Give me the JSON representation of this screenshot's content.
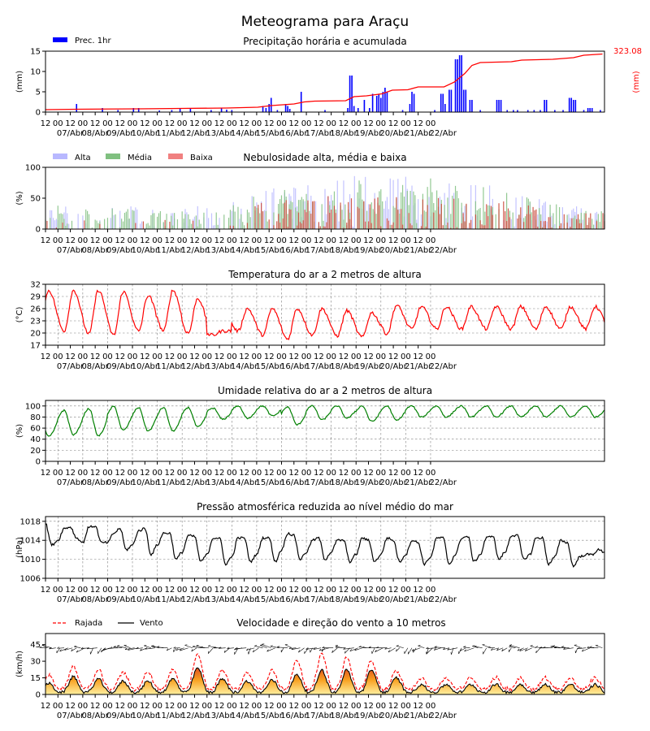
{
  "page": {
    "title": "Meteograma para Araçu"
  },
  "x_axis": {
    "hour_ticks": [
      "12",
      "00",
      "12",
      "00",
      "12",
      "00",
      "12",
      "00",
      "12",
      "00",
      "12",
      "00",
      "12",
      "00",
      "12",
      "00",
      "12",
      "00",
      "12",
      "00",
      "12",
      "00",
      "12",
      "00",
      "12",
      "00",
      "12",
      "00",
      "12",
      "00",
      "12",
      "00"
    ],
    "day_labels": [
      "07/Abr",
      "08/Abr",
      "09/Abr",
      "10/Abr",
      "11/Abr",
      "12/Abr",
      "13/Abr",
      "14/Abr",
      "15/Abr",
      "16/Abr",
      "17/Abr",
      "18/Abr",
      "19/Abr",
      "20/Abr",
      "21/Abr",
      "22/Abr"
    ],
    "range_hours": [
      0,
      384
    ]
  },
  "chart_data": [
    {
      "id": "precip",
      "type": "bar",
      "title": "Precipitação horária e acumulada",
      "ylabel": "(mm)",
      "ylabel_right": "(mm)",
      "ylim": [
        0,
        15
      ],
      "yticks": [
        "0",
        "5",
        "10",
        "15"
      ],
      "legend": [
        "Prec. 1hr"
      ],
      "total_label": "323.08",
      "colors": {
        "bars": "#0000ff",
        "accum": "#ff0000"
      },
      "bars": [
        [
          30,
          2
        ],
        [
          55,
          1
        ],
        [
          70,
          0.5
        ],
        [
          85,
          1
        ],
        [
          90,
          1
        ],
        [
          110,
          0.4
        ],
        [
          122,
          0.5
        ],
        [
          130,
          1
        ],
        [
          140,
          0.8
        ],
        [
          160,
          0.5
        ],
        [
          170,
          1
        ],
        [
          175,
          0.6
        ],
        [
          180,
          0.5
        ],
        [
          210,
          1.5
        ],
        [
          213,
          1
        ],
        [
          216,
          2
        ],
        [
          218,
          3.5
        ],
        [
          224,
          0.5
        ],
        [
          232,
          2
        ],
        [
          234,
          1.5
        ],
        [
          236,
          0.8
        ],
        [
          247,
          5
        ],
        [
          270,
          0.5
        ],
        [
          292,
          1
        ],
        [
          294,
          9
        ],
        [
          296,
          9
        ],
        [
          298,
          1.5
        ],
        [
          302,
          1
        ],
        [
          308,
          3
        ],
        [
          313,
          1
        ],
        [
          316,
          4.5
        ],
        [
          320,
          4
        ],
        [
          322,
          4.5
        ],
        [
          324,
          3.5
        ],
        [
          326,
          5
        ],
        [
          328,
          6
        ],
        [
          330,
          5
        ],
        [
          345,
          0.5
        ],
        [
          352,
          2
        ],
        [
          354,
          5
        ],
        [
          356,
          4.5
        ],
        [
          376,
          0.5
        ],
        [
          382,
          4.5
        ],
        [
          384,
          4.5
        ],
        [
          386,
          2
        ],
        [
          390,
          5.5
        ],
        [
          392,
          5.5
        ],
        [
          396,
          13
        ],
        [
          398,
          13
        ],
        [
          400,
          14
        ],
        [
          402,
          14
        ],
        [
          404,
          5.5
        ],
        [
          406,
          5.5
        ],
        [
          410,
          3
        ],
        [
          412,
          3
        ],
        [
          420,
          0.5
        ],
        [
          436,
          3
        ],
        [
          438,
          3
        ],
        [
          440,
          3
        ],
        [
          446,
          0.5
        ],
        [
          452,
          0.5
        ],
        [
          456,
          0.5
        ],
        [
          466,
          0.5
        ],
        [
          472,
          0.5
        ],
        [
          478,
          0.5
        ],
        [
          482,
          3
        ],
        [
          484,
          3
        ],
        [
          492,
          0.5
        ],
        [
          500,
          0.5
        ],
        [
          506,
          3.5
        ],
        [
          508,
          3.5
        ],
        [
          510,
          3
        ],
        [
          512,
          3
        ],
        [
          520,
          0.5
        ],
        [
          524,
          1
        ],
        [
          526,
          1
        ],
        [
          528,
          1
        ],
        [
          536,
          0.5
        ]
      ],
      "accum": [
        [
          0,
          0.6
        ],
        [
          30,
          0.7
        ],
        [
          90,
          0.8
        ],
        [
          130,
          0.9
        ],
        [
          175,
          1.0
        ],
        [
          205,
          1.2
        ],
        [
          218,
          1.6
        ],
        [
          240,
          2.0
        ],
        [
          250,
          2.5
        ],
        [
          260,
          2.7
        ],
        [
          290,
          2.8
        ],
        [
          298,
          3.8
        ],
        [
          310,
          4.0
        ],
        [
          325,
          4.5
        ],
        [
          335,
          5.4
        ],
        [
          350,
          5.5
        ],
        [
          360,
          6.2
        ],
        [
          385,
          6.2
        ],
        [
          395,
          7.4
        ],
        [
          405,
          9.5
        ],
        [
          412,
          11.5
        ],
        [
          420,
          12.2
        ],
        [
          450,
          12.4
        ],
        [
          460,
          12.8
        ],
        [
          490,
          13.0
        ],
        [
          510,
          13.4
        ],
        [
          520,
          14.0
        ],
        [
          538,
          14.3
        ]
      ]
    },
    {
      "id": "clouds",
      "type": "bar",
      "title": "Nebulosidade alta, média e baixa",
      "ylabel": "(%)",
      "ylim": [
        0,
        100
      ],
      "yticks": [
        "0",
        "50",
        "100"
      ],
      "series": [
        {
          "name": "Alta",
          "color": "#b8b8ff"
        },
        {
          "name": "Média",
          "color": "#80c080"
        },
        {
          "name": "Baixa",
          "color": "#f08080"
        }
      ]
    },
    {
      "id": "temp",
      "type": "line",
      "title": "Temperatura do ar a 2 metros de altura",
      "ylabel": "(°C)",
      "ylim": [
        17,
        32
      ],
      "yticks": [
        "17",
        "20",
        "23",
        "26",
        "29",
        "32"
      ],
      "color": "#ff0000",
      "daily_max": [
        30.5,
        30.5,
        30.5,
        30.2,
        29.2,
        30.5,
        28.5,
        20.5,
        26,
        26,
        26,
        26,
        25.5,
        25,
        26.8,
        26.5
      ],
      "daily_min": [
        19.8,
        20.5,
        19.8,
        19.5,
        20.5,
        20.5,
        20,
        19.5,
        20.5,
        19.5,
        18.5,
        19.5,
        19.3,
        19,
        19.8,
        21
      ]
    },
    {
      "id": "humidity",
      "type": "line",
      "title": "Umidade relativa do ar a 2 metros de altura",
      "ylabel": "(%)",
      "ylim": [
        0,
        110
      ],
      "yticks": [
        "0",
        "20",
        "40",
        "60",
        "80",
        "100"
      ],
      "color": "#008000",
      "daily_max": [
        88,
        92,
        95,
        99,
        97,
        97,
        97,
        96,
        100,
        100,
        98,
        100,
        100,
        100,
        100,
        100
      ],
      "daily_min": [
        45,
        48,
        46,
        56,
        55,
        55,
        62,
        76,
        78,
        82,
        66,
        75,
        78,
        72,
        74,
        80
      ]
    },
    {
      "id": "pressure",
      "type": "line",
      "title": "Pressão atmosférica reduzida ao nível médio do mar",
      "ylabel": "(hPa)",
      "ylim": [
        1006,
        1019
      ],
      "yticks": [
        "1006",
        "1010",
        "1014",
        "1018"
      ],
      "color": "#000000",
      "series_points": [
        [
          0,
          1017.5
        ],
        [
          6,
          1013
        ],
        [
          12,
          1014
        ],
        [
          18,
          1016.5
        ],
        [
          24,
          1016.8
        ],
        [
          30,
          1014.5
        ],
        [
          36,
          1013.5
        ],
        [
          42,
          1016.8
        ],
        [
          48,
          1017
        ],
        [
          54,
          1013.5
        ],
        [
          60,
          1013.5
        ],
        [
          66,
          1015.5
        ],
        [
          72,
          1016.5
        ],
        [
          78,
          1012
        ],
        [
          84,
          1013
        ],
        [
          90,
          1016
        ],
        [
          96,
          1016.5
        ],
        [
          102,
          1011
        ],
        [
          108,
          1013
        ],
        [
          114,
          1015.5
        ],
        [
          120,
          1015.5
        ],
        [
          126,
          1010
        ],
        [
          132,
          1011.5
        ],
        [
          138,
          1015
        ],
        [
          144,
          1014.8
        ],
        [
          150,
          1009.5
        ],
        [
          156,
          1011
        ],
        [
          162,
          1014.5
        ],
        [
          168,
          1014.5
        ],
        [
          174,
          1009
        ],
        [
          180,
          1010.5
        ],
        [
          186,
          1014.5
        ],
        [
          192,
          1014.5
        ],
        [
          198,
          1009.5
        ],
        [
          204,
          1011
        ],
        [
          210,
          1014.5
        ],
        [
          216,
          1014.5
        ],
        [
          222,
          1009.5
        ],
        [
          228,
          1012
        ],
        [
          234,
          1015.5
        ],
        [
          240,
          1015
        ],
        [
          246,
          1010
        ],
        [
          252,
          1011.5
        ],
        [
          258,
          1014
        ],
        [
          264,
          1014.5
        ],
        [
          270,
          1010
        ],
        [
          276,
          1011.5
        ],
        [
          282,
          1014
        ],
        [
          288,
          1014
        ],
        [
          294,
          1009.5
        ],
        [
          300,
          1011
        ],
        [
          306,
          1014.5
        ],
        [
          312,
          1014
        ],
        [
          318,
          1009.5
        ],
        [
          324,
          1011
        ],
        [
          330,
          1014.5
        ],
        [
          336,
          1014
        ],
        [
          342,
          1009.5
        ],
        [
          348,
          1011
        ],
        [
          354,
          1014
        ],
        [
          360,
          1013.5
        ],
        [
          366,
          1009
        ],
        [
          372,
          1010.5
        ],
        [
          378,
          1014.5
        ],
        [
          384,
          1014.5
        ],
        [
          390,
          1009
        ],
        [
          396,
          1011
        ],
        [
          402,
          1014.5
        ],
        [
          408,
          1014.8
        ],
        [
          414,
          1009.5
        ],
        [
          420,
          1011
        ],
        [
          426,
          1014.5
        ],
        [
          432,
          1015
        ],
        [
          438,
          1010
        ],
        [
          444,
          1011.5
        ],
        [
          450,
          1015
        ],
        [
          456,
          1015
        ],
        [
          462,
          1010
        ],
        [
          468,
          1011
        ],
        [
          474,
          1014.5
        ],
        [
          480,
          1014.5
        ],
        [
          486,
          1009
        ],
        [
          492,
          1010.5
        ],
        [
          498,
          1014
        ],
        [
          504,
          1013.5
        ],
        [
          510,
          1008.5
        ],
        [
          516,
          1010.5
        ],
        [
          522,
          1011
        ],
        [
          528,
          1011
        ],
        [
          534,
          1012
        ],
        [
          540,
          1011.5
        ]
      ]
    },
    {
      "id": "wind",
      "type": "line",
      "title": "Velocidade e direção do vento a 10 metros",
      "ylabel": "(km/h)",
      "ylim": [
        0,
        55
      ],
      "yticks": [
        "0",
        "15",
        "30",
        "45"
      ],
      "series": [
        {
          "name": "Rajada",
          "color": "#ff0000"
        },
        {
          "name": "Vento",
          "color": "#000000"
        }
      ],
      "daily_gust_peak": [
        17,
        25,
        22,
        20,
        20,
        22,
        36,
        22,
        20,
        22,
        31,
        37,
        33,
        30,
        21,
        15
      ],
      "daily_wind_peak": [
        10,
        16,
        14,
        12,
        12,
        14,
        24,
        14,
        12,
        13,
        18,
        22,
        22,
        22,
        15,
        9
      ]
    }
  ]
}
